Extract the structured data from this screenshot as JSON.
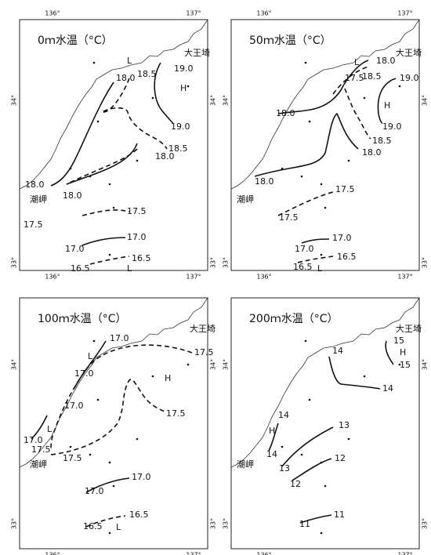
{
  "axes": {
    "longitude": [
      "136°",
      "137°"
    ],
    "latitude": [
      "34°",
      "33°"
    ]
  },
  "panels": [
    {
      "title": "0ｍ水温（°C）",
      "labels": [
        "大王埼",
        "潮岬",
        "L",
        "H",
        "L",
        "18.0",
        "18.5",
        "19.0",
        "19.0",
        "18.5",
        "18.0",
        "18.0",
        "18.0",
        "17.5",
        "17.5",
        "17.0",
        "17.0",
        "16.5",
        "16.5"
      ]
    },
    {
      "title": "50ｍ水温（°C）",
      "labels": [
        "大王埼",
        "潮岬",
        "L",
        "H",
        "L",
        "18.0",
        "17.5",
        "18.5",
        "19.0",
        "19.0",
        "18.5",
        "18.0",
        "18.0",
        "18.0",
        "17.5",
        "17.5",
        "17.0",
        "17.0",
        "16.5",
        "16.5"
      ]
    },
    {
      "title": "100ｍ水温（°C）",
      "labels": [
        "大王埼",
        "潮岬",
        "L",
        "H",
        "L",
        "L",
        "17.0",
        "17.0",
        "17.5",
        "17.0",
        "17.0",
        "17.5",
        "17.5",
        "17.5",
        "17.0",
        "17.0",
        "16.5",
        "16.5"
      ]
    },
    {
      "title": "200ｍ水温（°C）",
      "labels": [
        "大王埼",
        "潮岬",
        "15",
        "H",
        "15",
        "14",
        "14",
        "14",
        "H",
        "14",
        "13",
        "13",
        "12",
        "12",
        "11",
        "11"
      ]
    }
  ]
}
